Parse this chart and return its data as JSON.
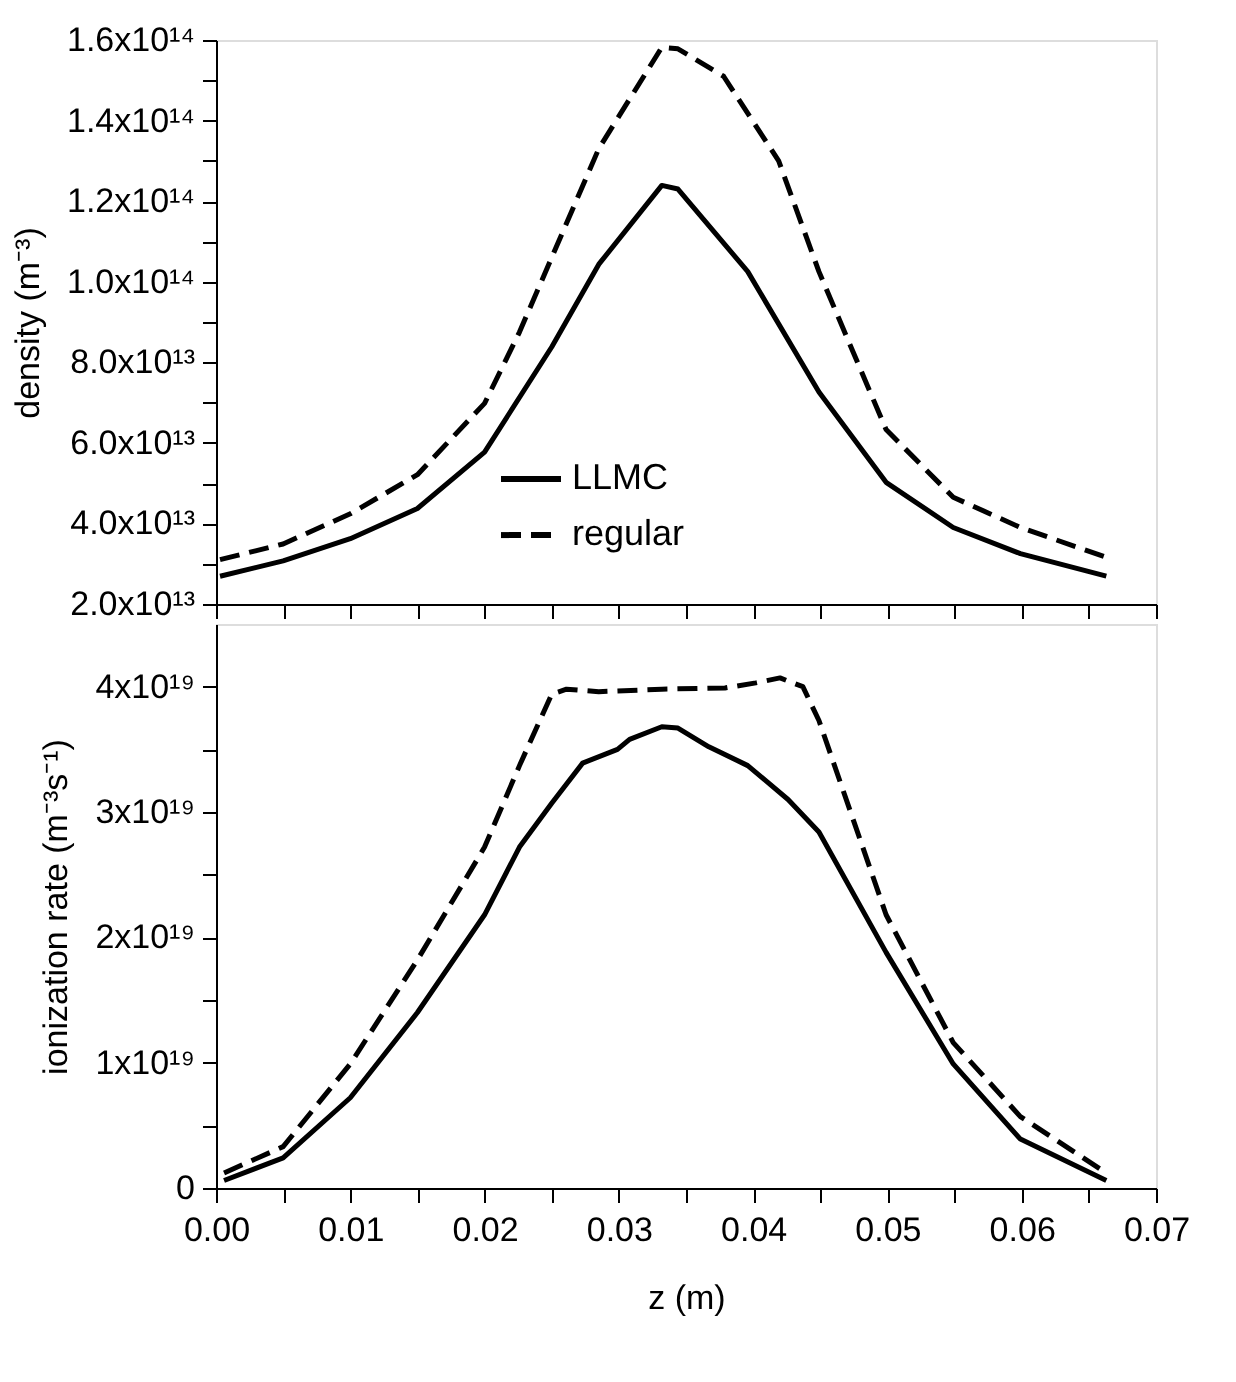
{
  "chart_data": [
    {
      "type": "line",
      "ylabel": "density (m⁻³)",
      "legend": "bottom",
      "grid": false,
      "tick_labels": "y",
      "xlim": [
        0,
        0.07
      ],
      "xticks": [
        {
          "value": 0,
          "label": null
        },
        {
          "value": 0.005,
          "label": null
        },
        {
          "value": 0.01,
          "label": null
        },
        {
          "value": 0.015,
          "label": null
        },
        {
          "value": 0.02,
          "label": null
        },
        {
          "value": 0.025,
          "label": null
        },
        {
          "value": 0.03,
          "label": null
        },
        {
          "value": 0.035,
          "label": null
        },
        {
          "value": 0.04,
          "label": null
        },
        {
          "value": 0.045,
          "label": null
        },
        {
          "value": 0.05,
          "label": null
        },
        {
          "value": 0.055,
          "label": null
        },
        {
          "value": 0.06,
          "label": null
        },
        {
          "value": 0.065,
          "label": null
        },
        {
          "value": 0.07,
          "label": null
        }
      ],
      "ylim": [
        20000000000000.0,
        160000000000000.0
      ],
      "yticks": [
        {
          "value": 20000000000000.0,
          "label": "2.0x10¹³"
        },
        {
          "value": 30000000000000.0,
          "label": null
        },
        {
          "value": 40000000000000.0,
          "label": "4.0x10¹³"
        },
        {
          "value": 50000000000000.0,
          "label": null
        },
        {
          "value": 60000000000000.0,
          "label": "6.0x10¹³"
        },
        {
          "value": 70000000000000.0,
          "label": null
        },
        {
          "value": 80000000000000.0,
          "label": "8.0x10¹³"
        },
        {
          "value": 90000000000000.0,
          "label": null
        },
        {
          "value": 100000000000000.0,
          "label": "1.0x10¹⁴"
        },
        {
          "value": 110000000000000.0,
          "label": null
        },
        {
          "value": 120000000000000.0,
          "label": "1.2x10¹⁴"
        },
        {
          "value": 130000000000000.0,
          "label": null
        },
        {
          "value": 140000000000000.0,
          "label": "1.4x10¹⁴"
        },
        {
          "value": 150000000000000.0,
          "label": null
        },
        {
          "value": 160000000000000.0,
          "label": "1.6x10¹⁴"
        }
      ],
      "series": [
        {
          "name": "LLMC",
          "color": "#000000",
          "line_style": "solid",
          "x": [
            0.0003,
            0.005,
            0.01,
            0.015,
            0.02,
            0.025,
            0.0285,
            0.0332,
            0.0344,
            0.0396,
            0.0449,
            0.0499,
            0.0549,
            0.0599,
            0.0663
          ],
          "values": [
            26900000000000.0,
            30700000000000.0,
            36200000000000.0,
            43700000000000.0,
            57700000000000.0,
            83800000000000.0,
            104300000000000.0,
            123900000000000.0,
            123000000000000.0,
            102500000000000.0,
            72600000000000.0,
            50200000000000.0,
            39000000000000.0,
            32500000000000.0,
            26900000000000.0
          ]
        },
        {
          "name": "regular",
          "color": "#000000",
          "line_style": "dashed",
          "x": [
            0.0003,
            0.005,
            0.01,
            0.015,
            0.02,
            0.0226,
            0.025,
            0.0285,
            0.0332,
            0.0344,
            0.0378,
            0.0419,
            0.0449,
            0.0499,
            0.0549,
            0.0599,
            0.0663
          ],
          "values": [
            31000000000000.0,
            34900000000000.0,
            42400000000000.0,
            52100000000000.0,
            69800000000000.0,
            87500000000000.0,
            106000000000000.0,
            133000000000000.0,
            158200000000000.0,
            157800000000000.0,
            151000000000000.0,
            130000000000000.0,
            102500000000000.0,
            63300000000000.0,
            46500000000000.0,
            39000000000000.0,
            31600000000000.0
          ]
        }
      ]
    },
    {
      "type": "line",
      "xlabel": "z (m)",
      "ylabel": "ionization rate (m⁻³s⁻¹)",
      "legend": "bottom",
      "grid": false,
      "xlim": [
        0,
        0.07
      ],
      "xticks": [
        {
          "value": 0,
          "label": "0.00"
        },
        {
          "value": 0.005,
          "label": null
        },
        {
          "value": 0.01,
          "label": "0.01"
        },
        {
          "value": 0.015,
          "label": null
        },
        {
          "value": 0.02,
          "label": "0.02"
        },
        {
          "value": 0.025,
          "label": null
        },
        {
          "value": 0.03,
          "label": "0.03"
        },
        {
          "value": 0.035,
          "label": null
        },
        {
          "value": 0.04,
          "label": "0.04"
        },
        {
          "value": 0.045,
          "label": null
        },
        {
          "value": 0.05,
          "label": "0.05"
        },
        {
          "value": 0.055,
          "label": null
        },
        {
          "value": 0.06,
          "label": "0.06"
        },
        {
          "value": 0.065,
          "label": null
        },
        {
          "value": 0.07,
          "label": "0.07"
        }
      ],
      "ylim": [
        0,
        4.5e+19
      ],
      "yticks": [
        0,
        {
          "value": 5e+18,
          "label": null
        },
        {
          "value": 1e+19,
          "label": "1x10¹⁹"
        },
        {
          "value": 1.5e+19,
          "label": null
        },
        {
          "value": 2e+19,
          "label": "2x10¹⁹"
        },
        {
          "value": 2.5e+19,
          "label": null
        },
        {
          "value": 3e+19,
          "label": "3x10¹⁹"
        },
        {
          "value": 3.5e+19,
          "label": null
        },
        {
          "value": 4e+19,
          "label": "4x10¹⁹"
        }
      ],
      "series": [
        {
          "name": "LLMC",
          "color": "#000000",
          "line_style": "solid",
          "x": [
            0.0006,
            0.005,
            0.01,
            0.015,
            0.02,
            0.0226,
            0.025,
            0.0273,
            0.0299,
            0.0308,
            0.0332,
            0.0344,
            0.0367,
            0.0396,
            0.0426,
            0.0449,
            0.0499,
            0.0549,
            0.0599,
            0.0663
          ],
          "values": [
            6e+17,
            2.4e+18,
            7.2e+18,
            1.4e+19,
            2.18e+19,
            2.72e+19,
            3.07e+19,
            3.39e+19,
            3.5e+19,
            3.58e+19,
            3.68e+19,
            3.67e+19,
            3.52e+19,
            3.37e+19,
            3.1e+19,
            2.84e+19,
            1.88e+19,
            9.9e+18,
            3.9e+18,
            6e+17
          ]
        },
        {
          "name": "regular",
          "color": "#000000",
          "line_style": "dashed",
          "x": [
            0.0006,
            0.005,
            0.01,
            0.015,
            0.02,
            0.0226,
            0.025,
            0.0261,
            0.0285,
            0.0332,
            0.0379,
            0.0402,
            0.042,
            0.0437,
            0.0449,
            0.0499,
            0.0549,
            0.0599,
            0.0663
          ],
          "values": [
            1.2e+18,
            3.3e+18,
            9.9e+18,
            1.82e+19,
            2.72e+19,
            3.37e+19,
            3.94e+19,
            3.98e+19,
            3.96e+19,
            3.98e+19,
            3.99e+19,
            4.03e+19,
            4.07e+19,
            4e+19,
            3.73e+19,
            2.18e+19,
            1.16e+19,
            5.7e+18,
            1.2e+18
          ]
        }
      ]
    }
  ]
}
